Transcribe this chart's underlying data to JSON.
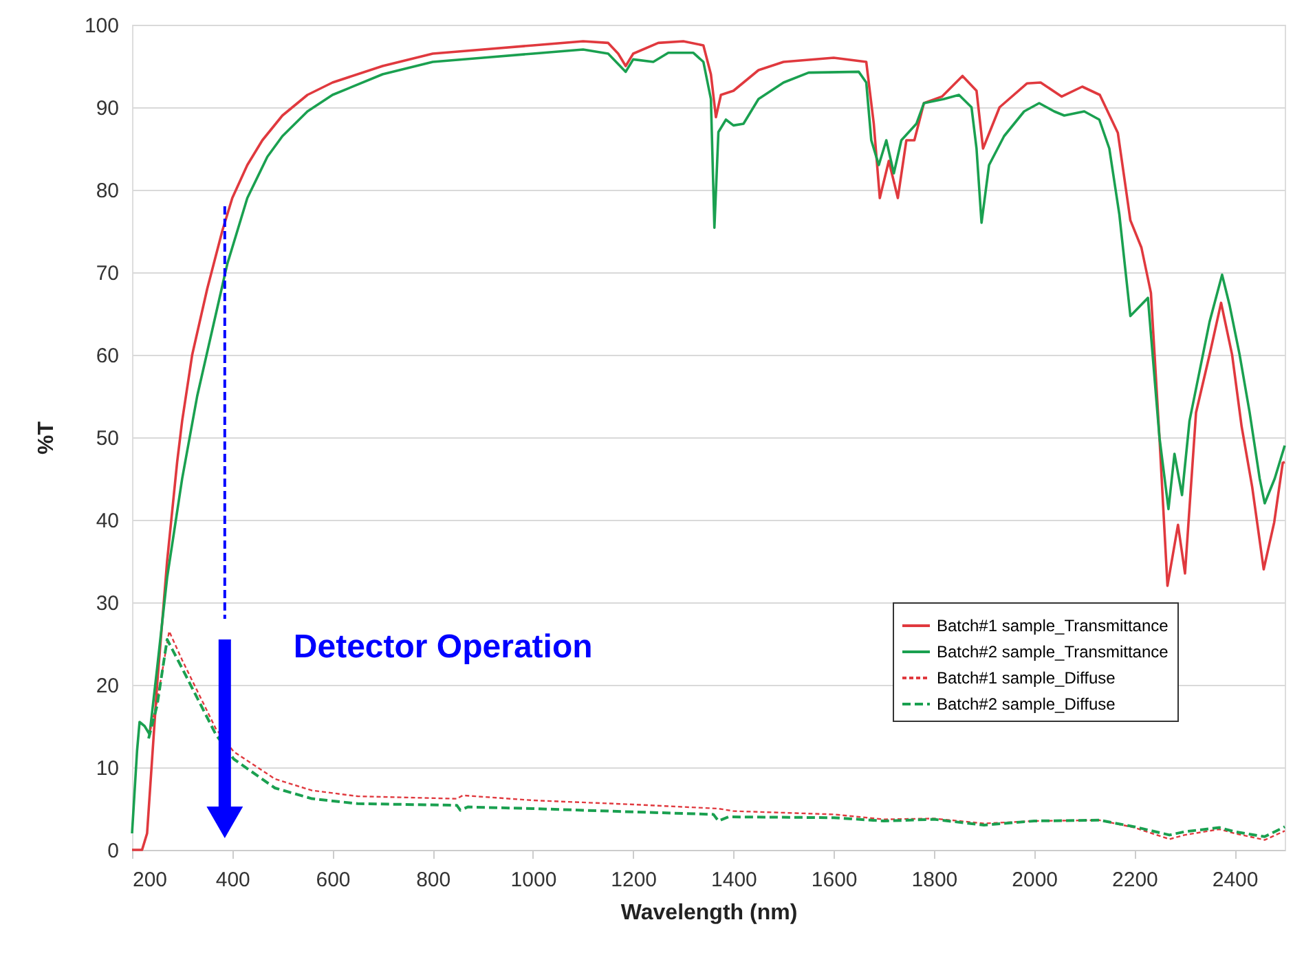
{
  "chart_data": {
    "type": "line",
    "xlabel": "Wavelength (nm)",
    "ylabel": "%T",
    "xlim": [
      200,
      2500
    ],
    "xticks": [
      200,
      400,
      600,
      800,
      1000,
      1200,
      1400,
      1600,
      1800,
      2000,
      2200,
      2400
    ],
    "ref_lines": [
      {
        "axis": "x",
        "value": 385,
        "color": "#0000ff",
        "line_style": "dashed"
      }
    ],
    "ylim": [
      0,
      100
    ],
    "yticks": [
      0,
      10,
      20,
      30,
      40,
      50,
      60,
      70,
      80,
      90,
      100
    ],
    "grid": "y",
    "legend": "bottom right",
    "marker": "none",
    "annotations": [
      "Detector Operation"
    ],
    "series": [
      {
        "name": "Batch#1 sample_Transmittance",
        "color": "#e0393e",
        "line_style": "solid",
        "x": [
          200,
          220,
          230,
          250,
          270,
          290,
          300,
          320,
          350,
          380,
          400,
          430,
          460,
          500,
          550,
          600,
          700,
          800,
          900,
          1000,
          1100,
          1150,
          1170,
          1185,
          1200,
          1250,
          1300,
          1340,
          1355,
          1365,
          1375,
          1400,
          1430,
          1450,
          1500,
          1600,
          1665,
          1680,
          1692,
          1710,
          1728,
          1745,
          1761,
          1780,
          1816,
          1857,
          1885,
          1898,
          1931,
          1986,
          2013,
          2055,
          2096,
          2131,
          2167,
          2192,
          2214,
          2233,
          2250,
          2266,
          2287,
          2301,
          2323,
          2350,
          2373,
          2395,
          2414,
          2435,
          2458,
          2479,
          2496,
          2500
        ],
        "values": [
          0,
          0,
          2,
          20,
          35,
          47,
          52,
          60,
          68,
          75,
          79,
          83,
          86,
          89,
          91.5,
          93,
          95,
          96.5,
          97,
          97.5,
          98,
          97.8,
          96.5,
          95,
          96.5,
          97.8,
          98,
          97.5,
          94,
          88.8,
          91.5,
          92,
          93.5,
          94.5,
          95.5,
          96,
          95.5,
          88,
          79,
          83.5,
          79,
          86,
          86,
          90.5,
          91.3,
          93.8,
          92,
          85,
          90,
          92.9,
          93,
          91.3,
          92.5,
          91.5,
          86.9,
          76.3,
          73,
          67.5,
          50,
          32,
          39.4,
          33.5,
          53,
          60,
          66.3,
          60,
          51.3,
          44,
          34,
          39.7,
          46.9,
          47
        ]
      },
      {
        "name": "Batch#2 sample_Transmittance",
        "color": "#1aa050",
        "line_style": "solid",
        "x": [
          200,
          210,
          215,
          225,
          235,
          250,
          270,
          300,
          330,
          360,
          390,
          400,
          430,
          470,
          500,
          550,
          600,
          700,
          800,
          900,
          1000,
          1100,
          1150,
          1185,
          1200,
          1240,
          1270,
          1320,
          1340,
          1355,
          1362,
          1370,
          1385,
          1400,
          1420,
          1450,
          1500,
          1550,
          1650,
          1665,
          1675,
          1690,
          1705,
          1720,
          1735,
          1750,
          1765,
          1780,
          1820,
          1850,
          1875,
          1885,
          1895,
          1910,
          1940,
          1980,
          2010,
          2040,
          2060,
          2100,
          2130,
          2150,
          2170,
          2192,
          2227,
          2250,
          2268,
          2280,
          2295,
          2310,
          2330,
          2350,
          2375,
          2390,
          2410,
          2430,
          2450,
          2460,
          2480,
          2490,
          2500
        ],
        "values": [
          2,
          12,
          15.5,
          15,
          14,
          22,
          33,
          45,
          55,
          63,
          71,
          73,
          79,
          84,
          86.5,
          89.5,
          91.5,
          94,
          95.5,
          96,
          96.5,
          97,
          96.5,
          94.3,
          95.8,
          95.5,
          96.6,
          96.6,
          95.5,
          91,
          75.4,
          87,
          88.5,
          87.8,
          88,
          91,
          93,
          94.2,
          94.3,
          93,
          86,
          83,
          86,
          82,
          86,
          87,
          88,
          90.5,
          91,
          91.5,
          90,
          85,
          76,
          83,
          86.5,
          89.5,
          90.5,
          89.5,
          89,
          89.5,
          88.5,
          85,
          77,
          64.7,
          66.9,
          50,
          41.3,
          48,
          43,
          52,
          58,
          64,
          69.7,
          66,
          60,
          53,
          45,
          42,
          45,
          47,
          49
        ]
      },
      {
        "name": "Batch#1 sample_Diffuse",
        "color": "#e0393e",
        "line_style": "dotted",
        "x": [
          233,
          250,
          274,
          300,
          367,
          403,
          485,
          559,
          650,
          848,
          860,
          1000,
          1200,
          1370,
          1400,
          1600,
          1700,
          1800,
          1900,
          2000,
          2130,
          2200,
          2270,
          2300,
          2370,
          2400,
          2460,
          2500
        ],
        "values": [
          13.6,
          18,
          26.5,
          23,
          14.7,
          11.9,
          8.6,
          7.2,
          6.5,
          6.2,
          6.6,
          6,
          5.5,
          5,
          4.7,
          4.3,
          3.7,
          3.8,
          3.2,
          3.5,
          3.6,
          2.7,
          1.3,
          1.8,
          2.5,
          2,
          1.2,
          2.3
        ]
      },
      {
        "name": "Batch#2 sample_Diffuse",
        "color": "#1aa050",
        "line_style": "dashed",
        "x": [
          233,
          250,
          270,
          300,
          367,
          403,
          485,
          559,
          650,
          848,
          855,
          870,
          1000,
          1200,
          1360,
          1370,
          1390,
          1600,
          1700,
          1800,
          1900,
          2000,
          2130,
          2200,
          2270,
          2300,
          2370,
          2400,
          2460,
          2500
        ],
        "values": [
          13.5,
          17.5,
          25.5,
          22,
          14,
          11,
          7.5,
          6.2,
          5.6,
          5.4,
          4.8,
          5.2,
          5,
          4.6,
          4.3,
          3.5,
          4,
          3.9,
          3.5,
          3.7,
          3,
          3.5,
          3.6,
          2.8,
          1.8,
          2.2,
          2.7,
          2.2,
          1.6,
          2.8
        ]
      }
    ]
  }
}
